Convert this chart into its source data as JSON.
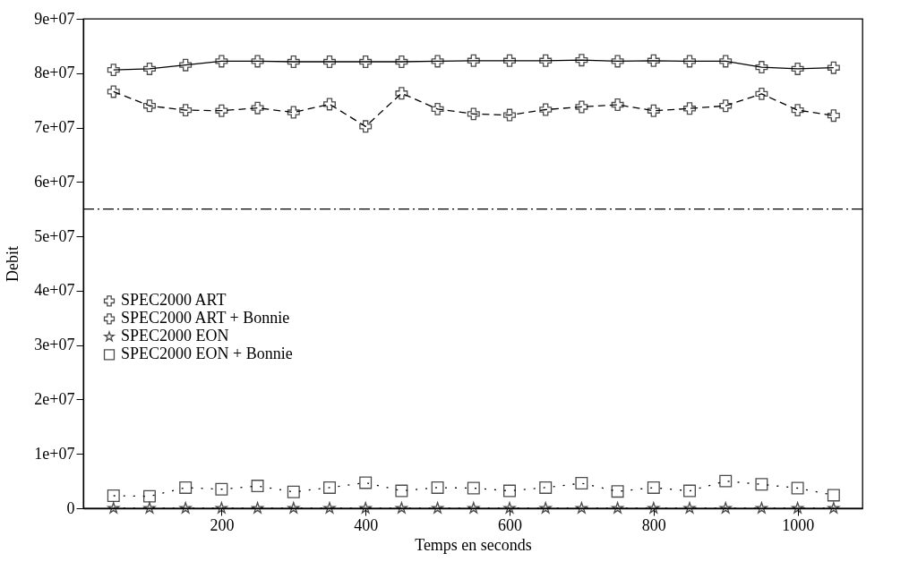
{
  "chart_data": {
    "type": "line",
    "xlabel": "Temps en seconds",
    "ylabel": "Debit",
    "x": [
      50,
      100,
      150,
      200,
      250,
      300,
      350,
      400,
      450,
      500,
      550,
      600,
      650,
      700,
      750,
      800,
      850,
      900,
      950,
      1000,
      1050
    ],
    "series": [
      {
        "name": "SPEC2000 ART",
        "color": "#000000",
        "marker": "cross",
        "line_style": "solid",
        "values": [
          80600000,
          80800000,
          81500000,
          82200000,
          82200000,
          82100000,
          82100000,
          82100000,
          82100000,
          82200000,
          82300000,
          82300000,
          82300000,
          82400000,
          82200000,
          82300000,
          82200000,
          82200000,
          81100000,
          80800000,
          81000000
        ]
      },
      {
        "name": "SPEC2000 ART + Bonnie",
        "color": "#000000",
        "marker": "cross",
        "line_style": "dashed",
        "values": [
          76600000,
          74000000,
          73200000,
          73100000,
          73600000,
          72800000,
          74300000,
          70200000,
          76300000,
          73400000,
          72500000,
          72300000,
          73300000,
          73800000,
          74200000,
          73100000,
          73500000,
          74000000,
          76200000,
          73200000,
          72200000
        ]
      },
      {
        "name": "SPEC2000 EON",
        "color": "#000000",
        "marker": "star",
        "line_style": "dotted",
        "values": [
          0,
          0,
          0,
          0,
          0,
          0,
          0,
          0,
          0,
          0,
          0,
          0,
          0,
          0,
          0,
          0,
          0,
          0,
          0,
          0,
          0
        ]
      },
      {
        "name": "SPEC2000 EON + Bonnie",
        "color": "#000000",
        "marker": "square",
        "line_style": "dotted",
        "values": [
          2300000,
          2200000,
          3800000,
          3500000,
          4100000,
          3000000,
          3800000,
          4700000,
          3200000,
          3800000,
          3700000,
          3200000,
          3800000,
          4600000,
          3100000,
          3800000,
          3200000,
          5000000,
          4400000,
          3700000,
          2400000
        ]
      }
    ],
    "xlim": [
      8,
      1090
    ],
    "xticks": [
      200,
      400,
      600,
      800,
      1000
    ],
    "ylim": [
      0,
      90000000
    ],
    "yticks": [
      0,
      {
        "value": 10000000,
        "label": "1e+07"
      },
      {
        "value": 20000000,
        "label": "2e+07"
      },
      {
        "value": 30000000,
        "label": "3e+07"
      },
      {
        "value": 40000000,
        "label": "4e+07"
      },
      {
        "value": 50000000,
        "label": "5e+07"
      },
      {
        "value": 60000000,
        "label": "6e+07"
      },
      {
        "value": 70000000,
        "label": "7e+07"
      },
      {
        "value": 80000000,
        "label": "8e+07"
      },
      {
        "value": 90000000,
        "label": "9e+07"
      }
    ],
    "ref_lines": [
      {
        "axis": "y",
        "value": 55000000,
        "color": "#000000",
        "line_style": "dashed"
      }
    ],
    "grid": false,
    "legend": "bottom left"
  }
}
